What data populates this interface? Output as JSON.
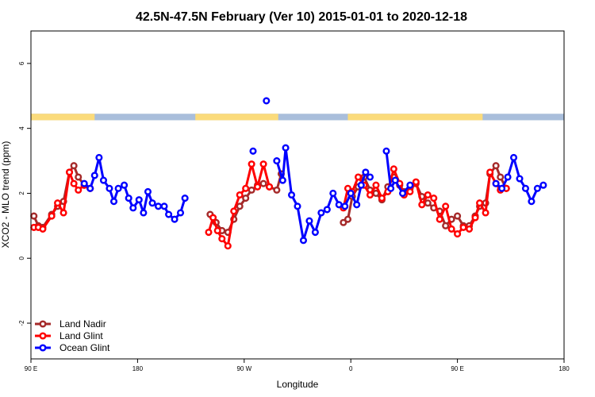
{
  "chart_data": {
    "type": "line",
    "title": "42.5N-47.5N February (Ver 10)   2015-01-01 to 2020-12-18",
    "xlabel": "Longitude",
    "ylabel": "XCO2 - MLO trend (ppm)",
    "xlim": [
      90,
      450
    ],
    "ylim": [
      -3.1,
      7
    ],
    "x_ticks": [
      {
        "value": 90,
        "label": "90 E"
      },
      {
        "value": 162,
        "label": "180"
      },
      {
        "value": 234,
        "label": "90 W"
      },
      {
        "value": 306,
        "label": "0"
      },
      {
        "value": 378,
        "label": "90 E"
      },
      {
        "value": 450,
        "label": "180"
      }
    ],
    "y_ticks": [
      {
        "value": -2,
        "label": "-2"
      },
      {
        "value": 0,
        "label": "0"
      },
      {
        "value": 2,
        "label": "2"
      },
      {
        "value": 4,
        "label": "4"
      },
      {
        "value": 6,
        "label": "6"
      }
    ],
    "grid": false,
    "legend_position": "bottom-left",
    "land_ocean_strip": {
      "y_range": [
        4.25,
        4.45
      ],
      "ocean_color": "#a9bedb",
      "land_color": "#fbdb7b",
      "land_segments": [
        [
          90,
          133
        ],
        [
          201,
          257
        ],
        [
          304,
          395
        ]
      ]
    },
    "series": [
      {
        "name": "Land Nadir",
        "color": "#a52a2a",
        "segments": [
          [
            [
              92,
              1.3
            ],
            [
              95,
              1.0
            ],
            [
              98,
              0.95
            ],
            [
              104,
              1.35
            ],
            [
              108,
              1.6
            ],
            [
              112,
              1.75
            ],
            [
              116,
              2.65
            ],
            [
              119,
              2.85
            ],
            [
              122,
              2.5
            ],
            [
              126,
              2.25
            ],
            [
              130,
              2.15
            ]
          ],
          [
            [
              211,
              1.35
            ],
            [
              215,
              1.1
            ],
            [
              219,
              0.85
            ],
            [
              223,
              0.8
            ],
            [
              227,
              1.2
            ],
            [
              231,
              1.6
            ],
            [
              235,
              1.85
            ],
            [
              239,
              2.1
            ],
            [
              243,
              2.25
            ],
            [
              247,
              2.3
            ],
            [
              251,
              2.2
            ],
            [
              256,
              2.1
            ],
            [
              259,
              2.6
            ]
          ],
          [
            [
              301,
              1.1
            ],
            [
              304,
              1.2
            ],
            [
              307,
              1.9
            ],
            [
              311,
              2.2
            ],
            [
              315,
              2.5
            ],
            [
              319,
              2.1
            ],
            [
              323,
              2.0
            ],
            [
              327,
              1.8
            ],
            [
              331,
              2.2
            ],
            [
              335,
              2.5
            ],
            [
              339,
              2.25
            ],
            [
              342,
              2.05
            ],
            [
              346,
              2.15
            ],
            [
              350,
              2.3
            ],
            [
              354,
              1.9
            ],
            [
              358,
              1.7
            ],
            [
              362,
              1.55
            ],
            [
              366,
              1.45
            ],
            [
              370,
              1.0
            ],
            [
              374,
              1.2
            ],
            [
              378,
              1.3
            ],
            [
              382,
              1.0
            ],
            [
              386,
              1.0
            ],
            [
              390,
              1.3
            ],
            [
              393,
              1.6
            ],
            [
              397,
              1.7
            ],
            [
              400,
              2.6
            ],
            [
              404,
              2.85
            ],
            [
              407,
              2.5
            ],
            [
              411,
              2.15
            ]
          ]
        ]
      },
      {
        "name": "Land Glint",
        "color": "#ff0000",
        "segments": [
          [
            [
              92,
              0.95
            ],
            [
              95,
              0.95
            ],
            [
              98,
              0.9
            ],
            [
              104,
              1.3
            ],
            [
              108,
              1.7
            ],
            [
              112,
              1.4
            ],
            [
              116,
              2.65
            ],
            [
              119,
              2.3
            ],
            [
              122,
              2.1
            ],
            [
              126,
              2.25
            ],
            [
              130,
              2.15
            ]
          ],
          [
            [
              210,
              0.8
            ],
            [
              213,
              1.25
            ],
            [
              216,
              0.85
            ],
            [
              219,
              0.6
            ],
            [
              223,
              0.38
            ],
            [
              227,
              1.45
            ],
            [
              231,
              1.95
            ],
            [
              235,
              2.15
            ],
            [
              239,
              2.9
            ],
            [
              243,
              2.2
            ],
            [
              247,
              2.9
            ],
            [
              251,
              2.2
            ]
          ],
          [
            [
              301,
              1.55
            ],
            [
              304,
              2.15
            ],
            [
              307,
              2.05
            ],
            [
              311,
              2.5
            ],
            [
              315,
              2.25
            ],
            [
              319,
              1.95
            ],
            [
              323,
              2.25
            ],
            [
              327,
              1.85
            ],
            [
              331,
              2.05
            ],
            [
              335,
              2.75
            ],
            [
              339,
              2.3
            ],
            [
              342,
              1.95
            ],
            [
              346,
              2.05
            ],
            [
              350,
              2.35
            ],
            [
              354,
              1.65
            ],
            [
              358,
              1.95
            ],
            [
              362,
              1.85
            ],
            [
              366,
              1.2
            ],
            [
              370,
              1.6
            ],
            [
              374,
              0.9
            ],
            [
              378,
              0.75
            ],
            [
              382,
              0.95
            ],
            [
              386,
              0.9
            ],
            [
              390,
              1.25
            ],
            [
              393,
              1.7
            ],
            [
              397,
              1.4
            ],
            [
              400,
              2.65
            ],
            [
              404,
              2.3
            ],
            [
              407,
              2.1
            ],
            [
              411,
              2.15
            ]
          ]
        ]
      },
      {
        "name": "Ocean Glint",
        "color": "#0000ff",
        "segments": [
          [
            [
              126,
              2.3
            ],
            [
              130,
              2.15
            ],
            [
              133,
              2.55
            ],
            [
              136,
              3.1
            ],
            [
              139,
              2.4
            ],
            [
              143,
              2.15
            ],
            [
              146,
              1.75
            ],
            [
              149,
              2.15
            ],
            [
              153,
              2.25
            ],
            [
              156,
              1.85
            ],
            [
              159,
              1.55
            ],
            [
              163,
              1.8
            ],
            [
              166,
              1.4
            ],
            [
              169,
              2.05
            ],
            [
              172,
              1.7
            ],
            [
              176,
              1.6
            ],
            [
              180,
              1.6
            ],
            [
              183,
              1.35
            ],
            [
              187,
              1.2
            ],
            [
              191,
              1.4
            ],
            [
              194,
              1.85
            ]
          ],
          [
            [
              256,
              3.0
            ],
            [
              260,
              2.4
            ],
            [
              262,
              3.4
            ],
            [
              266,
              1.95
            ],
            [
              270,
              1.6
            ],
            [
              274,
              0.55
            ],
            [
              278,
              1.15
            ],
            [
              282,
              0.8
            ],
            [
              286,
              1.4
            ],
            [
              290,
              1.5
            ],
            [
              294,
              2.0
            ],
            [
              298,
              1.65
            ],
            [
              302,
              1.6
            ],
            [
              306,
              2.0
            ],
            [
              310,
              1.65
            ],
            [
              313,
              2.25
            ],
            [
              316,
              2.65
            ],
            [
              319,
              2.5
            ]
          ],
          [
            [
              330,
              3.3
            ],
            [
              333,
              2.15
            ],
            [
              336,
              2.4
            ],
            [
              341,
              2.0
            ],
            [
              346,
              2.25
            ]
          ],
          [
            [
              404,
              2.3
            ],
            [
              408,
              2.15
            ],
            [
              412,
              2.5
            ],
            [
              416,
              3.1
            ],
            [
              420,
              2.45
            ],
            [
              424,
              2.15
            ],
            [
              428,
              1.75
            ],
            [
              432,
              2.15
            ],
            [
              436,
              2.25
            ]
          ]
        ]
      }
    ],
    "isolated_points": [
      {
        "series": "Ocean Glint",
        "x": 240,
        "y": 3.3
      },
      {
        "series": "Ocean Glint",
        "x": 249,
        "y": 4.85
      }
    ]
  }
}
